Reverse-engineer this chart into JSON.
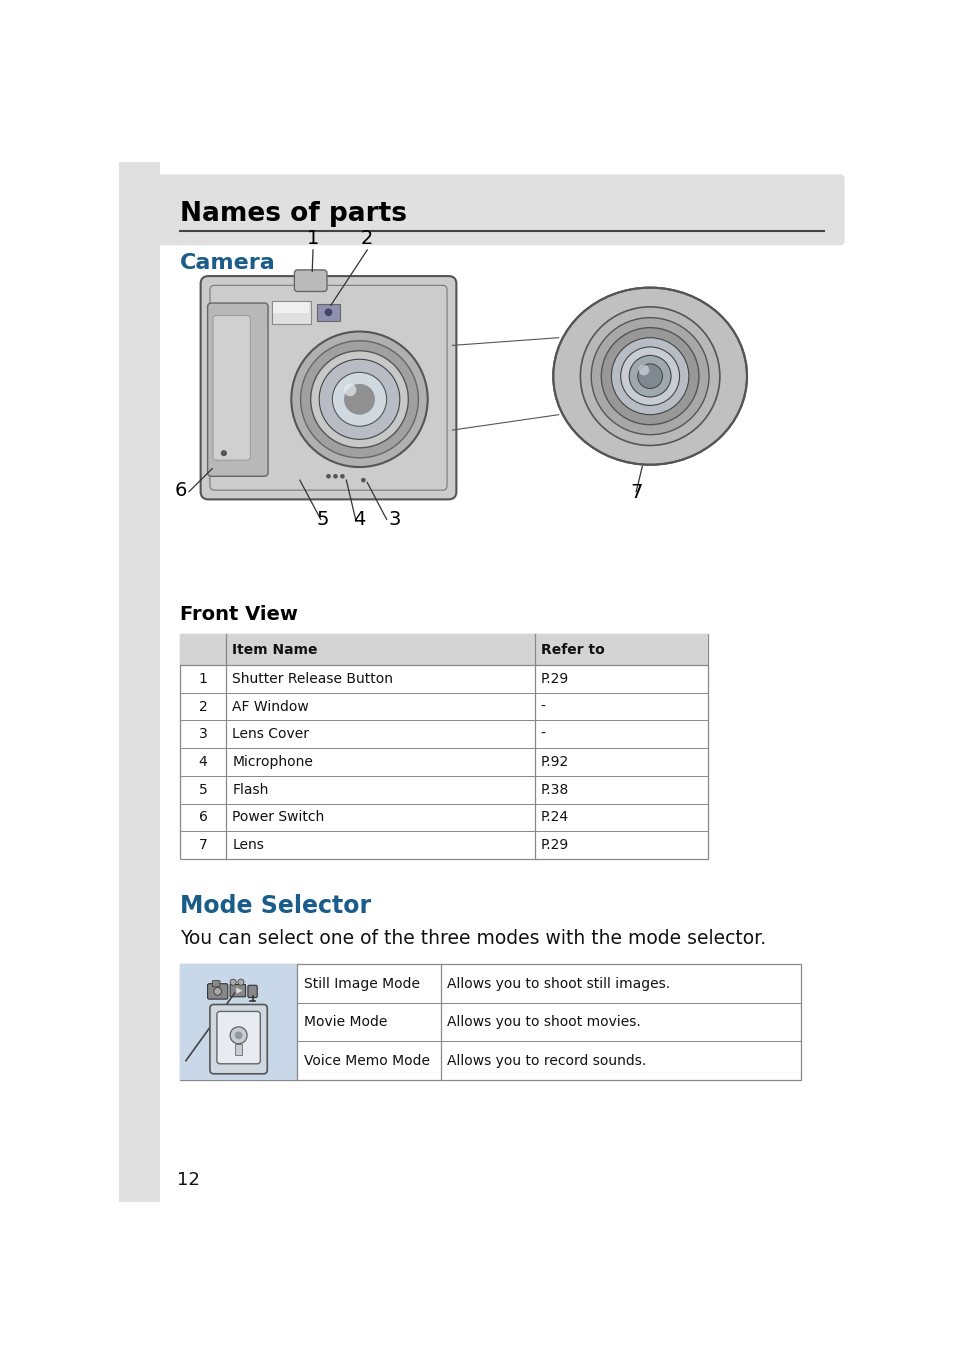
{
  "page_bg": "#ffffff",
  "left_margin_bg": "#e0e0e0",
  "header_bg": "#e0e0e0",
  "header_title": "Names of parts",
  "header_title_color": "#000000",
  "camera_section_title": "Camera",
  "camera_section_color": "#1a5c8a",
  "front_view_title": "Front View",
  "front_view_title_color": "#000000",
  "table_header_bg": "#d4d4d4",
  "table_row_bg": "#ffffff",
  "table_border_color": "#888888",
  "table_header_items": [
    "",
    "Item Name",
    "Refer to"
  ],
  "table_rows": [
    [
      "1",
      "Shutter Release Button",
      "P.29"
    ],
    [
      "2",
      "AF Window",
      "-"
    ],
    [
      "3",
      "Lens Cover",
      "-"
    ],
    [
      "4",
      "Microphone",
      "P.92"
    ],
    [
      "5",
      "Flash",
      "P.38"
    ],
    [
      "6",
      "Power Switch",
      "P.24"
    ],
    [
      "7",
      "Lens",
      "P.29"
    ]
  ],
  "mode_selector_title": "Mode Selector",
  "mode_selector_color": "#1a5c8a",
  "mode_table_rows": [
    [
      "Still Image Mode",
      "Allows you to shoot still images."
    ],
    [
      "Movie Mode",
      "Allows you to shoot movies."
    ],
    [
      "Voice Memo Mode",
      "Allows you to record sounds."
    ]
  ],
  "mode_image_bg": "#c8d8e8",
  "page_number": "12",
  "cam_body_color": "#c8c8c8",
  "cam_body_edge": "#666666",
  "cam_lens_outer": "#b8b8b8",
  "cam_lens_mid": "#a0a0a0",
  "cam_lens_inner": "#888888",
  "cam_lens_center": "#d0d8e0"
}
